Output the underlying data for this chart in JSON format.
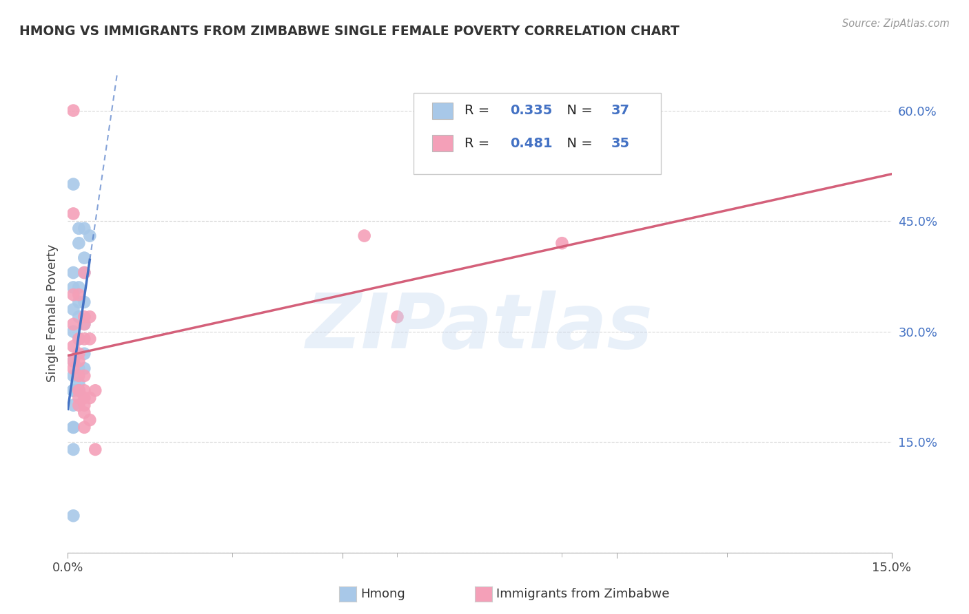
{
  "title": "HMONG VS IMMIGRANTS FROM ZIMBABWE SINGLE FEMALE POVERTY CORRELATION CHART",
  "source": "Source: ZipAtlas.com",
  "ylabel": "Single Female Poverty",
  "xlim": [
    0.0,
    0.15
  ],
  "ylim": [
    0.0,
    0.65
  ],
  "hmong_R": 0.335,
  "hmong_N": 37,
  "zimbabwe_R": 0.481,
  "zimbabwe_N": 35,
  "hmong_color": "#a8c8e8",
  "zimbabwe_color": "#f4a0b8",
  "hmong_line_color": "#4472c4",
  "zimbabwe_line_color": "#d4607a",
  "legend_R_color": "#4472c4",
  "legend_N_color": "#4472c4",
  "right_tick_color": "#4472c4",
  "hmong_scatter_x": [
    0.001,
    0.002,
    0.002,
    0.003,
    0.003,
    0.001,
    0.002,
    0.003,
    0.004,
    0.001,
    0.002,
    0.003,
    0.001,
    0.002,
    0.003,
    0.001,
    0.002,
    0.003,
    0.001,
    0.002,
    0.003,
    0.001,
    0.002,
    0.001,
    0.002,
    0.001,
    0.002,
    0.001,
    0.002,
    0.001,
    0.002,
    0.001,
    0.001,
    0.001,
    0.001,
    0.001,
    0.001
  ],
  "hmong_scatter_y": [
    0.5,
    0.44,
    0.42,
    0.4,
    0.38,
    0.36,
    0.34,
    0.44,
    0.43,
    0.38,
    0.36,
    0.34,
    0.33,
    0.32,
    0.31,
    0.3,
    0.29,
    0.27,
    0.26,
    0.25,
    0.25,
    0.24,
    0.23,
    0.22,
    0.22,
    0.22,
    0.22,
    0.22,
    0.22,
    0.22,
    0.22,
    0.22,
    0.2,
    0.17,
    0.17,
    0.14,
    0.05
  ],
  "zimbabwe_scatter_x": [
    0.001,
    0.001,
    0.003,
    0.001,
    0.002,
    0.003,
    0.004,
    0.001,
    0.002,
    0.003,
    0.001,
    0.002,
    0.001,
    0.002,
    0.001,
    0.002,
    0.003,
    0.003,
    0.004,
    0.002,
    0.002,
    0.003,
    0.004,
    0.003,
    0.002,
    0.003,
    0.002,
    0.003,
    0.004,
    0.003,
    0.054,
    0.06,
    0.09,
    0.005,
    0.005
  ],
  "zimbabwe_scatter_y": [
    0.6,
    0.46,
    0.38,
    0.35,
    0.35,
    0.32,
    0.32,
    0.31,
    0.29,
    0.29,
    0.28,
    0.27,
    0.26,
    0.26,
    0.25,
    0.24,
    0.24,
    0.31,
    0.29,
    0.22,
    0.22,
    0.22,
    0.21,
    0.21,
    0.21,
    0.2,
    0.2,
    0.19,
    0.18,
    0.17,
    0.43,
    0.32,
    0.42,
    0.22,
    0.14
  ],
  "watermark_text": "ZIPatlas",
  "background_color": "#ffffff",
  "grid_color": "#d8d8d8"
}
